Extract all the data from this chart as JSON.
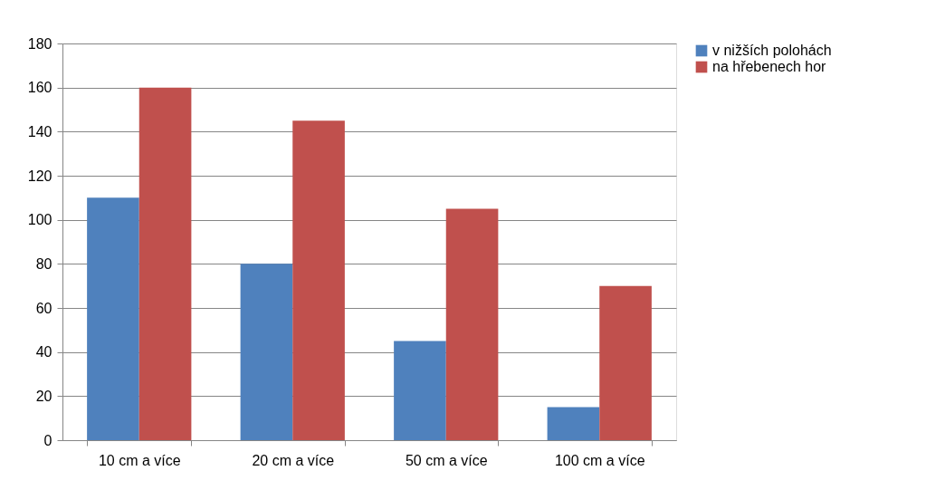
{
  "chart_data": {
    "type": "bar",
    "categories": [
      "10 cm a více",
      "20 cm a více",
      "50 cm a více",
      "100 cm a více"
    ],
    "series": [
      {
        "name": "v nižších polohách",
        "color": "#4f81bd",
        "values": [
          110,
          80,
          45,
          15
        ]
      },
      {
        "name": "na hřebenech hor",
        "color": "#c0504d",
        "values": [
          160,
          145,
          105,
          70
        ]
      }
    ],
    "ylim": [
      0,
      180
    ],
    "yticks": [
      0,
      20,
      40,
      60,
      80,
      100,
      120,
      140,
      160,
      180
    ],
    "grid": "y",
    "legend": "right"
  }
}
